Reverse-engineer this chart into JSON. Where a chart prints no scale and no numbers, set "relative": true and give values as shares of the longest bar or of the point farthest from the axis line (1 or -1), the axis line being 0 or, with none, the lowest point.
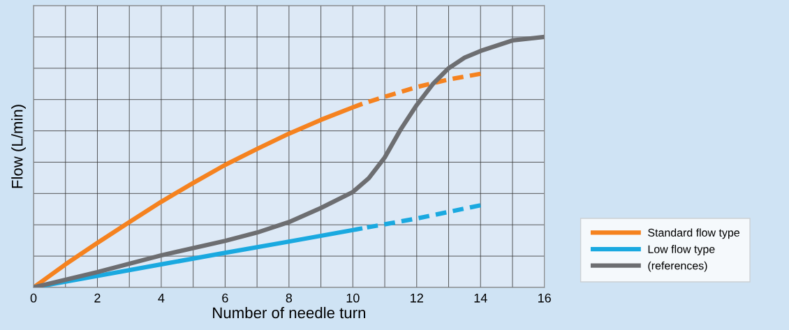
{
  "chart_data": {
    "type": "line",
    "relative": true,
    "xlabel": "Number of needle turn",
    "ylabel": "Flow (L/min)",
    "xlim": [
      0,
      16
    ],
    "xticks": [
      0,
      {
        "value": 1,
        "label": null
      },
      2,
      {
        "value": 3,
        "label": null
      },
      4,
      {
        "value": 5,
        "label": null
      },
      6,
      {
        "value": 7,
        "label": null
      },
      8,
      {
        "value": 9,
        "label": null
      },
      10,
      {
        "value": 11,
        "label": null
      },
      12,
      {
        "value": 13,
        "label": null
      },
      14,
      {
        "value": 15,
        "label": null
      },
      16
    ],
    "grid": true,
    "legend": "bottom right",
    "marker": "none",
    "series": [
      {
        "name": "Standard flow type",
        "color": "#f5821f",
        "line_style": "solid",
        "x": [
          0,
          1,
          2,
          3,
          4,
          5,
          6,
          7,
          8,
          9,
          10,
          10.3
        ],
        "values": [
          0,
          0.092,
          0.178,
          0.261,
          0.342,
          0.417,
          0.489,
          0.553,
          0.614,
          0.669,
          0.719,
          0.733
        ]
      },
      {
        "color": "#f5821f",
        "line_style": "dashed",
        "x": [
          10.3,
          11,
          12,
          13,
          14
        ],
        "values": [
          0.733,
          0.761,
          0.8,
          0.83,
          0.853
        ]
      },
      {
        "name": "Low flow type",
        "color": "#1aa9e0",
        "line_style": "solid",
        "x": [
          0,
          2,
          4,
          6,
          8,
          10,
          10.3
        ],
        "values": [
          0,
          0.046,
          0.092,
          0.138,
          0.183,
          0.229,
          0.236
        ]
      },
      {
        "color": "#1aa9e0",
        "line_style": "dashed",
        "x": [
          10.3,
          12,
          14
        ],
        "values": [
          0.236,
          0.275,
          0.328
        ]
      },
      {
        "name": "(references)",
        "color": "#6d6e71",
        "line_style": "solid",
        "x": [
          0,
          2,
          4,
          6,
          7,
          8,
          9,
          10,
          10.5,
          11,
          11.5,
          12,
          12.5,
          13,
          13.5,
          14,
          15,
          16
        ],
        "values": [
          0,
          0.061,
          0.128,
          0.186,
          0.219,
          0.261,
          0.317,
          0.381,
          0.436,
          0.519,
          0.631,
          0.728,
          0.811,
          0.875,
          0.917,
          0.944,
          0.986,
          1.0
        ]
      }
    ]
  }
}
